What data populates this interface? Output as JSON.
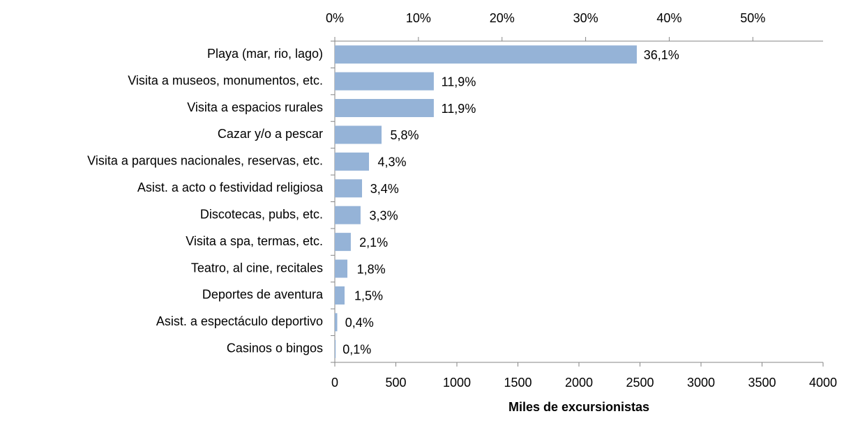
{
  "chart_data": {
    "type": "bar",
    "orientation": "horizontal",
    "xlabel": "Miles de excursionistas",
    "categories": [
      "Playa (mar, rio, lago)",
      "Visita a museos, monumentos, etc.",
      "Visita a espacios rurales",
      "Cazar y/o a pescar",
      "Visita a parques nacionales, reservas, etc.",
      "Asist. a acto o festividad religiosa",
      "Discotecas, pubs, etc.",
      "Visita a spa,  termas, etc.",
      "Teatro, al cine, recitales",
      "Deportes de aventura",
      "Asist. a espectáculo deportivo",
      "Casinos o bingos"
    ],
    "values": [
      2474,
      811,
      811,
      383,
      280,
      223,
      211,
      131,
      103,
      80,
      20,
      7
    ],
    "color": "#95b3d7",
    "percentages": {
      "values": [
        36.1,
        11.9,
        11.9,
        5.8,
        4.3,
        3.4,
        3.3,
        2.1,
        1.8,
        1.5,
        0.4,
        0.1
      ],
      "value_labels": [
        "36,1%",
        "11,9%",
        "11,9%",
        "5,8%",
        "4,3%",
        "3,4%",
        "3,3%",
        "2,1%",
        "1,8%",
        "1,5%",
        "0,4%",
        "0,1%"
      ]
    },
    "xlim": [
      0,
      4000
    ],
    "xticks": [
      0,
      500,
      1000,
      1500,
      2000,
      2500,
      3000,
      3500,
      4000
    ],
    "x2lim": [
      0,
      58.4
    ],
    "x2ticks": [
      {
        "value": 0,
        "label": "0%"
      },
      {
        "value": 10,
        "label": "10%"
      },
      {
        "value": 20,
        "label": "20%"
      },
      {
        "value": 30,
        "label": "30%"
      },
      {
        "value": 40,
        "label": "40%"
      },
      {
        "value": 50,
        "label": "50%"
      }
    ]
  }
}
